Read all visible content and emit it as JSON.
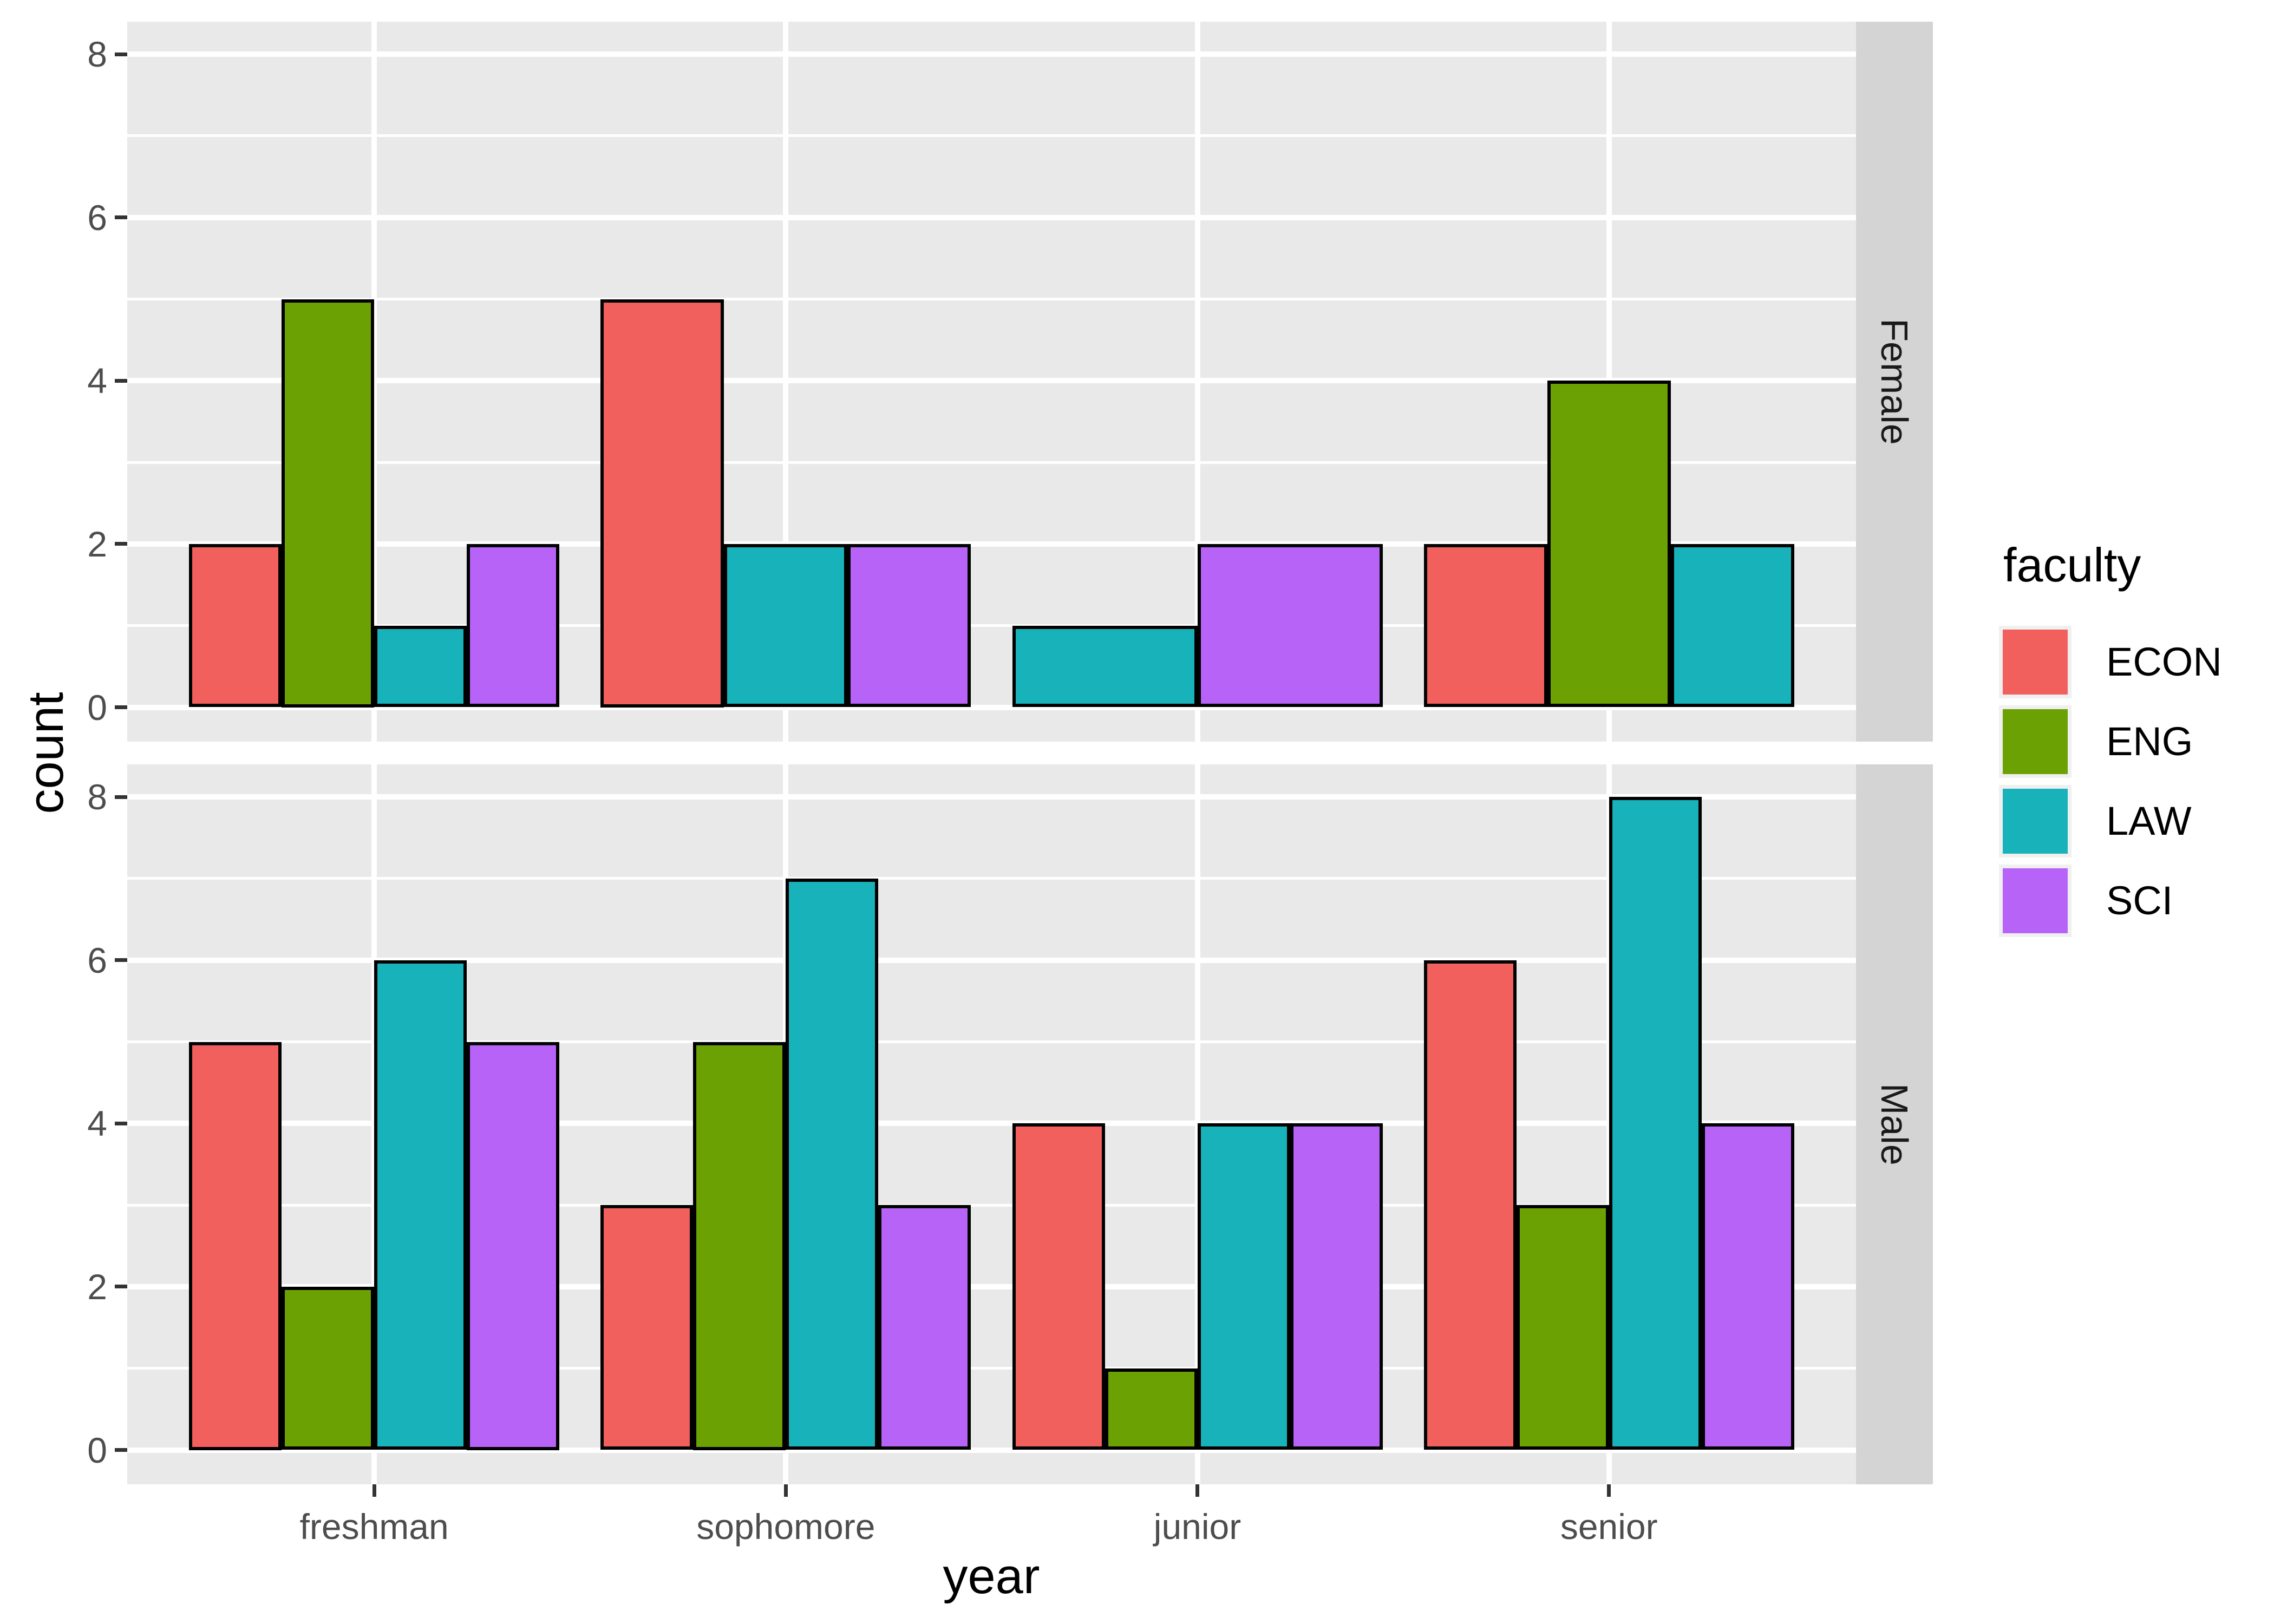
{
  "chart_data": {
    "type": "bar",
    "title": "",
    "xlabel": "year",
    "ylabel": "count",
    "legend_title": "faculty",
    "legend_position": "right",
    "grid": true,
    "categories": [
      "freshman",
      "sophomore",
      "junior",
      "senior"
    ],
    "y_ticks": [
      0,
      2,
      4,
      6,
      8
    ],
    "y_minor_gridlines": [
      1,
      3,
      5,
      7
    ],
    "ylim": [
      -0.42,
      8.42
    ],
    "series": [
      {
        "name": "ECON",
        "color": "#F2605D"
      },
      {
        "name": "ENG",
        "color": "#6CA104"
      },
      {
        "name": "LAW",
        "color": "#18B2BA"
      },
      {
        "name": "SCI",
        "color": "#B763F8"
      }
    ],
    "facets": [
      {
        "label": "Female",
        "groups": [
          {
            "year": "freshman",
            "bars": [
              {
                "faculty": "ECON",
                "count": 2
              },
              {
                "faculty": "ENG",
                "count": 5
              },
              {
                "faculty": "LAW",
                "count": 1
              },
              {
                "faculty": "SCI",
                "count": 2
              }
            ]
          },
          {
            "year": "sophomore",
            "bars": [
              {
                "faculty": "ECON",
                "count": 5
              },
              {
                "faculty": "LAW",
                "count": 2
              },
              {
                "faculty": "SCI",
                "count": 2
              }
            ]
          },
          {
            "year": "junior",
            "bars": [
              {
                "faculty": "LAW",
                "count": 1
              },
              {
                "faculty": "SCI",
                "count": 2
              }
            ]
          },
          {
            "year": "senior",
            "bars": [
              {
                "faculty": "ECON",
                "count": 2
              },
              {
                "faculty": "ENG",
                "count": 4
              },
              {
                "faculty": "LAW",
                "count": 2
              }
            ]
          }
        ]
      },
      {
        "label": "Male",
        "groups": [
          {
            "year": "freshman",
            "bars": [
              {
                "faculty": "ECON",
                "count": 5
              },
              {
                "faculty": "ENG",
                "count": 2
              },
              {
                "faculty": "LAW",
                "count": 6
              },
              {
                "faculty": "SCI",
                "count": 5
              }
            ]
          },
          {
            "year": "sophomore",
            "bars": [
              {
                "faculty": "ECON",
                "count": 3
              },
              {
                "faculty": "ENG",
                "count": 5
              },
              {
                "faculty": "LAW",
                "count": 7
              },
              {
                "faculty": "SCI",
                "count": 3
              }
            ]
          },
          {
            "year": "junior",
            "bars": [
              {
                "faculty": "ECON",
                "count": 4
              },
              {
                "faculty": "ENG",
                "count": 1
              },
              {
                "faculty": "LAW",
                "count": 4
              },
              {
                "faculty": "SCI",
                "count": 4
              }
            ]
          },
          {
            "year": "senior",
            "bars": [
              {
                "faculty": "ECON",
                "count": 6
              },
              {
                "faculty": "ENG",
                "count": 3
              },
              {
                "faculty": "LAW",
                "count": 8
              },
              {
                "faculty": "SCI",
                "count": 4
              }
            ]
          }
        ]
      }
    ]
  },
  "style": {
    "background": "#FFFFFF",
    "panel_background": "#E9E9E9",
    "strip_background": "#D4D4D4",
    "gridline_color": "#FFFFFF",
    "bar_outline_color": "#000000",
    "tick_color": "#333333",
    "tick_label_color": "#4D4D4D",
    "title_color": "#000000",
    "strip_text_color": "#1A1A1A",
    "legend_key_background": "#F0F0F0"
  }
}
